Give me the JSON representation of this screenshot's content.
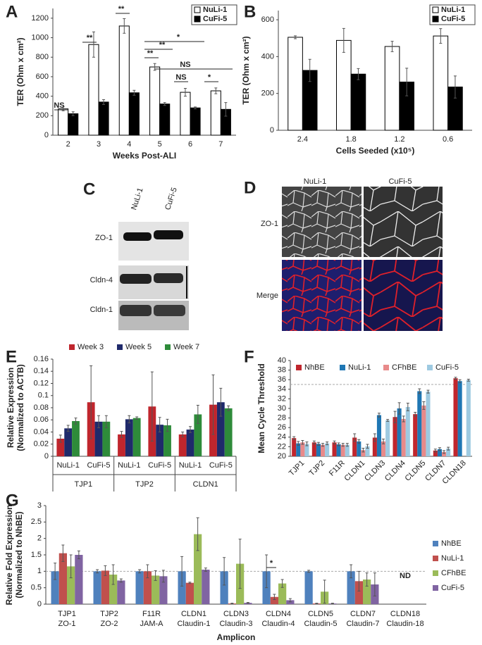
{
  "chart_data": [
    {
      "type": "bar",
      "panel": "A",
      "ylabel": "TER (Ohm x cm²)",
      "xlabel": "Weeks Post-ALI",
      "categories": [
        "2",
        "3",
        "4",
        "5",
        "6",
        "7"
      ],
      "bar_outline": "#000000",
      "series": [
        {
          "name": "NuLi-1",
          "color": "#ffffff",
          "values": [
            270,
            930,
            1120,
            700,
            440,
            455
          ],
          "errors": [
            20,
            130,
            75,
            35,
            40,
            30
          ]
        },
        {
          "name": "CuFi-5",
          "color": "#000000",
          "values": [
            220,
            340,
            435,
            320,
            280,
            265
          ],
          "errors": [
            20,
            25,
            25,
            15,
            10,
            70
          ]
        }
      ],
      "ylim": [
        0,
        1300
      ],
      "yticks": [
        0,
        200,
        400,
        600,
        800,
        1000,
        1200
      ],
      "annotations": [
        "NS",
        "**",
        "**",
        "**",
        "**",
        "*",
        "NS",
        "NS",
        "*"
      ]
    },
    {
      "type": "bar",
      "panel": "B",
      "ylabel": "TER (Ohm x cm²)",
      "xlabel": "Cells Seeded (x10⁵)",
      "categories": [
        "2.4",
        "1.8",
        "1.2",
        "0.6"
      ],
      "bar_outline": "#000000",
      "series": [
        {
          "name": "NuLi-1",
          "color": "#ffffff",
          "values": [
            505,
            488,
            455,
            512
          ],
          "errors": [
            8,
            65,
            28,
            40
          ]
        },
        {
          "name": "CuFi-5",
          "color": "#000000",
          "values": [
            325,
            305,
            262,
            235
          ],
          "errors": [
            60,
            30,
            75,
            60
          ]
        }
      ],
      "ylim": [
        0,
        650
      ],
      "yticks": [
        0,
        200,
        400,
        600
      ]
    },
    {
      "type": "bar",
      "panel": "E",
      "ylabel": [
        "Relative Expression",
        "(Normalized to ACTB)"
      ],
      "categories": [
        "NuLi-1",
        "CuFi-5",
        "NuLi-1",
        "CuFi-5",
        "NuLi-1",
        "CuFi-5"
      ],
      "groups": [
        "TJP1",
        "TJP2",
        "CLDN1"
      ],
      "series": [
        {
          "name": "Week 3",
          "color": "#c0262d",
          "values": [
            0.029,
            0.089,
            0.036,
            0.082,
            0.036,
            0.085
          ],
          "errors": [
            0.006,
            0.06,
            0.005,
            0.057,
            0.004,
            0.049
          ]
        },
        {
          "name": "Week 5",
          "color": "#1f2a6b",
          "values": [
            0.046,
            0.057,
            0.061,
            0.052,
            0.044,
            0.089
          ],
          "errors": [
            0.005,
            0.01,
            0.006,
            0.012,
            0.005,
            0.023
          ]
        },
        {
          "name": "Week 7",
          "color": "#2e8b3a",
          "values": [
            0.058,
            0.057,
            0.063,
            0.051,
            0.069,
            0.079
          ],
          "errors": [
            0.005,
            0.01,
            0.002,
            0.01,
            0.015,
            0.004
          ]
        }
      ],
      "ylim": [
        0,
        0.16
      ],
      "yticks": [
        0,
        0.02,
        0.04,
        0.06,
        0.08,
        0.1,
        0.12,
        0.14,
        0.16
      ]
    },
    {
      "type": "bar",
      "panel": "F",
      "ylabel": "Mean Cycle Threshold",
      "categories": [
        "TJP1",
        "TJP2",
        "F11R",
        "CLDN1",
        "CLDN3",
        "CLDN4",
        "CLDN5",
        "CLDN7",
        "CLDN18"
      ],
      "series": [
        {
          "name": "NhBE",
          "color": "#c0262d",
          "values": [
            23.8,
            22.9,
            22.9,
            23.9,
            23.9,
            28.2,
            28.8,
            21.2,
            36.3
          ],
          "errors": [
            0.3,
            0.3,
            0.3,
            0.8,
            0.8,
            1.2,
            0.4,
            0.3,
            0.2
          ]
        },
        {
          "name": "NuLi-1",
          "color": "#1f77b4",
          "values": [
            22.7,
            22.6,
            22.5,
            23.1,
            28.6,
            30.0,
            33.6,
            21.5,
            35.7
          ],
          "errors": [
            0.4,
            0.3,
            0.3,
            0.4,
            0.4,
            1.2,
            0.5,
            0.3,
            0.3
          ]
        },
        {
          "name": "CFhBE",
          "color": "#e88a8a",
          "values": [
            22.9,
            22.4,
            22.4,
            21.3,
            23.1,
            27.8,
            30.6,
            20.9,
            null
          ],
          "errors": [
            0.4,
            0.3,
            0.3,
            0.4,
            0.5,
            0.6,
            0.8,
            0.3,
            null
          ]
        },
        {
          "name": "CuFi-5",
          "color": "#9ecae1",
          "values": [
            22.6,
            22.7,
            22.4,
            22.1,
            27.5,
            30.3,
            33.5,
            21.6,
            35.9
          ],
          "errors": [
            0.4,
            0.3,
            0.3,
            0.4,
            0.2,
            0.8,
            0.3,
            0.3,
            0.2
          ]
        }
      ],
      "ylim": [
        20,
        40
      ],
      "yticks": [
        20,
        22,
        24,
        26,
        28,
        30,
        32,
        34,
        36,
        38,
        40
      ],
      "reference_line": 35
    },
    {
      "type": "bar",
      "panel": "G",
      "ylabel": [
        "Relative Fold Expression",
        "(Normalized to NhBE)"
      ],
      "xlabel": "Amplicon",
      "categories": [
        "TJP1",
        "TJP2",
        "F11R",
        "CLDN1",
        "CLDN3",
        "CLDN4",
        "CLDN5",
        "CLDN7",
        "CLDN18"
      ],
      "subcategories": [
        "ZO-1",
        "ZO-2",
        "JAM-A",
        "Claudin-1",
        "Claudin-3",
        "Claudin-4",
        "Claudin-5",
        "Claudin-7",
        "Claudin-18"
      ],
      "series": [
        {
          "name": "NhBE",
          "color": "#4f81bd",
          "values": [
            1,
            1,
            1,
            1,
            1,
            1,
            1,
            1,
            null
          ],
          "errors": [
            0.25,
            0.05,
            0.05,
            0.45,
            0.42,
            0.5,
            0.03,
            0.2,
            null
          ]
        },
        {
          "name": "NuLi-1",
          "color": "#c0504d",
          "values": [
            1.55,
            1.02,
            1.0,
            0.65,
            0.02,
            0.22,
            0.02,
            0.7,
            null
          ],
          "errors": [
            0.25,
            0.15,
            0.2,
            0.02,
            0.01,
            0.08,
            0.01,
            0.3,
            null
          ]
        },
        {
          "name": "CFhBE",
          "color": "#9bbb59",
          "values": [
            1.15,
            0.9,
            0.87,
            2.13,
            1.23,
            0.63,
            0.38,
            0.75,
            null
          ],
          "errors": [
            0.35,
            0.3,
            0.15,
            0.5,
            0.75,
            0.12,
            0.35,
            0.2,
            null
          ]
        },
        {
          "name": "CuFi-5",
          "color": "#8064a2",
          "values": [
            1.5,
            0.72,
            0.85,
            1.05,
            0.04,
            0.12,
            0.02,
            0.6,
            null
          ],
          "errors": [
            0.12,
            0.05,
            0.18,
            0.05,
            0.01,
            0.05,
            0.01,
            0.35,
            null
          ]
        }
      ],
      "ylim": [
        0,
        3
      ],
      "yticks": [
        0,
        0.5,
        1,
        1.5,
        2,
        2.5,
        3
      ],
      "reference_line": 1,
      "annotations": [
        "*",
        "ND"
      ]
    }
  ],
  "blot": {
    "panel": "C",
    "lanes": [
      "NuLi-1",
      "CuFi-5"
    ],
    "bands": [
      "ZO-1",
      "Cldn-4",
      "Cldn-1"
    ]
  },
  "micrograph": {
    "panel": "D",
    "columns": [
      "NuLi-1",
      "CuFi-5"
    ],
    "rows": [
      "ZO-1",
      "Merge"
    ]
  }
}
